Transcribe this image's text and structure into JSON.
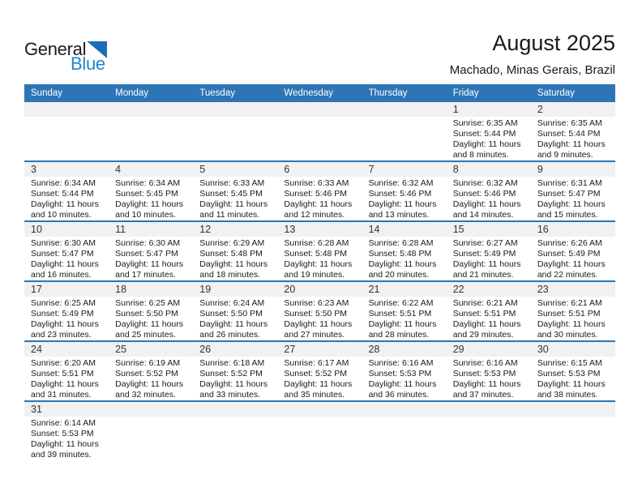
{
  "logo": {
    "general": "General",
    "blue": "Blue"
  },
  "header": {
    "title": "August 2025",
    "subtitle": "Machado, Minas Gerais, Brazil"
  },
  "colors": {
    "header_blue": "#2E75B6",
    "separator_blue": "#2E75B6",
    "band_gray": "#F1F1F1",
    "logo_blue": "#1E87C8",
    "logo_triangle_blue": "#1C6FB5"
  },
  "calendar": {
    "weekdays": [
      "Sunday",
      "Monday",
      "Tuesday",
      "Wednesday",
      "Thursday",
      "Friday",
      "Saturday"
    ],
    "labels": {
      "sunrise": "Sunrise:",
      "sunset": "Sunset:",
      "daylight": "Daylight:"
    },
    "weeks": [
      [
        null,
        null,
        null,
        null,
        null,
        {
          "day": "1",
          "sunrise": "6:35 AM",
          "sunset": "5:44 PM",
          "daylight": "11 hours and 8 minutes."
        },
        {
          "day": "2",
          "sunrise": "6:35 AM",
          "sunset": "5:44 PM",
          "daylight": "11 hours and 9 minutes."
        }
      ],
      [
        {
          "day": "3",
          "sunrise": "6:34 AM",
          "sunset": "5:44 PM",
          "daylight": "11 hours and 10 minutes."
        },
        {
          "day": "4",
          "sunrise": "6:34 AM",
          "sunset": "5:45 PM",
          "daylight": "11 hours and 10 minutes."
        },
        {
          "day": "5",
          "sunrise": "6:33 AM",
          "sunset": "5:45 PM",
          "daylight": "11 hours and 11 minutes."
        },
        {
          "day": "6",
          "sunrise": "6:33 AM",
          "sunset": "5:46 PM",
          "daylight": "11 hours and 12 minutes."
        },
        {
          "day": "7",
          "sunrise": "6:32 AM",
          "sunset": "5:46 PM",
          "daylight": "11 hours and 13 minutes."
        },
        {
          "day": "8",
          "sunrise": "6:32 AM",
          "sunset": "5:46 PM",
          "daylight": "11 hours and 14 minutes."
        },
        {
          "day": "9",
          "sunrise": "6:31 AM",
          "sunset": "5:47 PM",
          "daylight": "11 hours and 15 minutes."
        }
      ],
      [
        {
          "day": "10",
          "sunrise": "6:30 AM",
          "sunset": "5:47 PM",
          "daylight": "11 hours and 16 minutes."
        },
        {
          "day": "11",
          "sunrise": "6:30 AM",
          "sunset": "5:47 PM",
          "daylight": "11 hours and 17 minutes."
        },
        {
          "day": "12",
          "sunrise": "6:29 AM",
          "sunset": "5:48 PM",
          "daylight": "11 hours and 18 minutes."
        },
        {
          "day": "13",
          "sunrise": "6:28 AM",
          "sunset": "5:48 PM",
          "daylight": "11 hours and 19 minutes."
        },
        {
          "day": "14",
          "sunrise": "6:28 AM",
          "sunset": "5:48 PM",
          "daylight": "11 hours and 20 minutes."
        },
        {
          "day": "15",
          "sunrise": "6:27 AM",
          "sunset": "5:49 PM",
          "daylight": "11 hours and 21 minutes."
        },
        {
          "day": "16",
          "sunrise": "6:26 AM",
          "sunset": "5:49 PM",
          "daylight": "11 hours and 22 minutes."
        }
      ],
      [
        {
          "day": "17",
          "sunrise": "6:25 AM",
          "sunset": "5:49 PM",
          "daylight": "11 hours and 23 minutes."
        },
        {
          "day": "18",
          "sunrise": "6:25 AM",
          "sunset": "5:50 PM",
          "daylight": "11 hours and 25 minutes."
        },
        {
          "day": "19",
          "sunrise": "6:24 AM",
          "sunset": "5:50 PM",
          "daylight": "11 hours and 26 minutes."
        },
        {
          "day": "20",
          "sunrise": "6:23 AM",
          "sunset": "5:50 PM",
          "daylight": "11 hours and 27 minutes."
        },
        {
          "day": "21",
          "sunrise": "6:22 AM",
          "sunset": "5:51 PM",
          "daylight": "11 hours and 28 minutes."
        },
        {
          "day": "22",
          "sunrise": "6:21 AM",
          "sunset": "5:51 PM",
          "daylight": "11 hours and 29 minutes."
        },
        {
          "day": "23",
          "sunrise": "6:21 AM",
          "sunset": "5:51 PM",
          "daylight": "11 hours and 30 minutes."
        }
      ],
      [
        {
          "day": "24",
          "sunrise": "6:20 AM",
          "sunset": "5:51 PM",
          "daylight": "11 hours and 31 minutes."
        },
        {
          "day": "25",
          "sunrise": "6:19 AM",
          "sunset": "5:52 PM",
          "daylight": "11 hours and 32 minutes."
        },
        {
          "day": "26",
          "sunrise": "6:18 AM",
          "sunset": "5:52 PM",
          "daylight": "11 hours and 33 minutes."
        },
        {
          "day": "27",
          "sunrise": "6:17 AM",
          "sunset": "5:52 PM",
          "daylight": "11 hours and 35 minutes."
        },
        {
          "day": "28",
          "sunrise": "6:16 AM",
          "sunset": "5:53 PM",
          "daylight": "11 hours and 36 minutes."
        },
        {
          "day": "29",
          "sunrise": "6:16 AM",
          "sunset": "5:53 PM",
          "daylight": "11 hours and 37 minutes."
        },
        {
          "day": "30",
          "sunrise": "6:15 AM",
          "sunset": "5:53 PM",
          "daylight": "11 hours and 38 minutes."
        }
      ],
      [
        {
          "day": "31",
          "sunrise": "6:14 AM",
          "sunset": "5:53 PM",
          "daylight": "11 hours and 39 minutes."
        },
        null,
        null,
        null,
        null,
        null,
        null
      ]
    ]
  }
}
